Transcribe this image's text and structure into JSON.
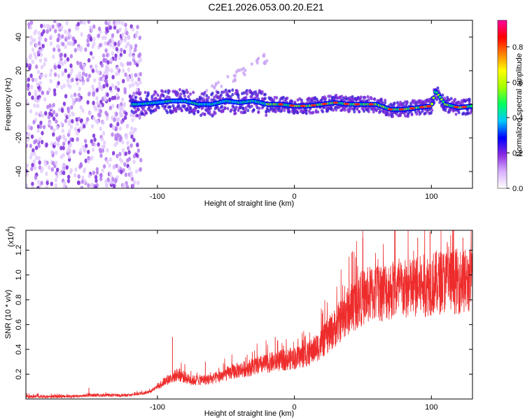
{
  "title": "C2E1.2026.053.00.20.E21",
  "chart_data": [
    {
      "type": "heatmap",
      "xlabel": "Height of straight line (km)",
      "ylabel": "Frequency (Hz)",
      "xlim": [
        -196,
        130
      ],
      "ylim": [
        -50,
        50
      ],
      "xticks": [
        -100,
        0,
        100
      ],
      "yticks": [
        -40,
        -20,
        0,
        20,
        40
      ],
      "ridge": [
        {
          "x": -115,
          "y": 0
        },
        {
          "x": -100,
          "y": 1
        },
        {
          "x": -90,
          "y": 2
        },
        {
          "x": -80,
          "y": 2
        },
        {
          "x": -70,
          "y": 0
        },
        {
          "x": -60,
          "y": 0
        },
        {
          "x": -50,
          "y": 2
        },
        {
          "x": -40,
          "y": 1
        },
        {
          "x": -30,
          "y": 2
        },
        {
          "x": -20,
          "y": 0
        },
        {
          "x": -10,
          "y": 0
        },
        {
          "x": 0,
          "y": -1
        },
        {
          "x": 10,
          "y": -1
        },
        {
          "x": 20,
          "y": 0
        },
        {
          "x": 30,
          "y": 1
        },
        {
          "x": 40,
          "y": 0
        },
        {
          "x": 50,
          "y": 0
        },
        {
          "x": 60,
          "y": 0
        },
        {
          "x": 70,
          "y": -3
        },
        {
          "x": 80,
          "y": -3
        },
        {
          "x": 90,
          "y": -2
        },
        {
          "x": 100,
          "y": -1
        },
        {
          "x": 103,
          "y": 8
        },
        {
          "x": 110,
          "y": 0
        },
        {
          "x": 120,
          "y": -2
        },
        {
          "x": 130,
          "y": -1
        }
      ],
      "colorbar": {
        "label": "Normalized spectral amplitude",
        "range": [
          0,
          0.95
        ],
        "ticks": [
          "0.0",
          "0.2",
          "0.4",
          "0.6",
          "0.8"
        ],
        "colors": [
          "#ffffff",
          "#d8b0ff",
          "#8a2be2",
          "#0000ff",
          "#00c8ff",
          "#00ff60",
          "#a0ff00",
          "#ffff00",
          "#ff8000",
          "#ff0000",
          "#ff00a0"
        ]
      }
    },
    {
      "type": "line",
      "xlabel": "Height of straight line (km)",
      "ylabel": "SNR (10 * v/v)",
      "multiplier": "(x10",
      "multiplier_exp": "4",
      "multiplier_close": ")",
      "xlim": [
        -196,
        130
      ],
      "ylim": [
        0,
        1.36
      ],
      "xticks": [
        -100,
        0,
        100
      ],
      "yticks": [
        "0.2",
        "0.4",
        "0.6",
        "0.8",
        "1.0",
        "1.2"
      ],
      "series": [
        {
          "name": "SNR",
          "color": "#ee2c2c",
          "envelope": [
            {
              "x": -196,
              "y": 0.02
            },
            {
              "x": -160,
              "y": 0.02
            },
            {
              "x": -150,
              "y": 0.03
            },
            {
              "x": -120,
              "y": 0.03
            },
            {
              "x": -105,
              "y": 0.06
            },
            {
              "x": -95,
              "y": 0.14
            },
            {
              "x": -85,
              "y": 0.2
            },
            {
              "x": -75,
              "y": 0.15
            },
            {
              "x": -60,
              "y": 0.16
            },
            {
              "x": -45,
              "y": 0.22
            },
            {
              "x": -30,
              "y": 0.26
            },
            {
              "x": -15,
              "y": 0.3
            },
            {
              "x": 0,
              "y": 0.33
            },
            {
              "x": 10,
              "y": 0.36
            },
            {
              "x": 20,
              "y": 0.45
            },
            {
              "x": 30,
              "y": 0.58
            },
            {
              "x": 40,
              "y": 0.72
            },
            {
              "x": 50,
              "y": 0.82
            },
            {
              "x": 60,
              "y": 0.86
            },
            {
              "x": 70,
              "y": 0.88
            },
            {
              "x": 80,
              "y": 0.88
            },
            {
              "x": 90,
              "y": 0.9
            },
            {
              "x": 100,
              "y": 0.93
            },
            {
              "x": 110,
              "y": 0.95
            },
            {
              "x": 120,
              "y": 0.95
            },
            {
              "x": 130,
              "y": 0.95
            }
          ],
          "spikes": [
            {
              "x": -150,
              "y": 0.09
            },
            {
              "x": -89,
              "y": 0.5
            },
            {
              "x": -80,
              "y": 0.28
            },
            {
              "x": -65,
              "y": 0.3
            },
            {
              "x": -14,
              "y": 0.5
            },
            {
              "x": -8,
              "y": 0.43
            },
            {
              "x": 50,
              "y": 1.3
            },
            {
              "x": 90,
              "y": 1.3
            },
            {
              "x": 99,
              "y": 1.35
            },
            {
              "x": 123,
              "y": 1.3
            }
          ]
        }
      ]
    }
  ]
}
